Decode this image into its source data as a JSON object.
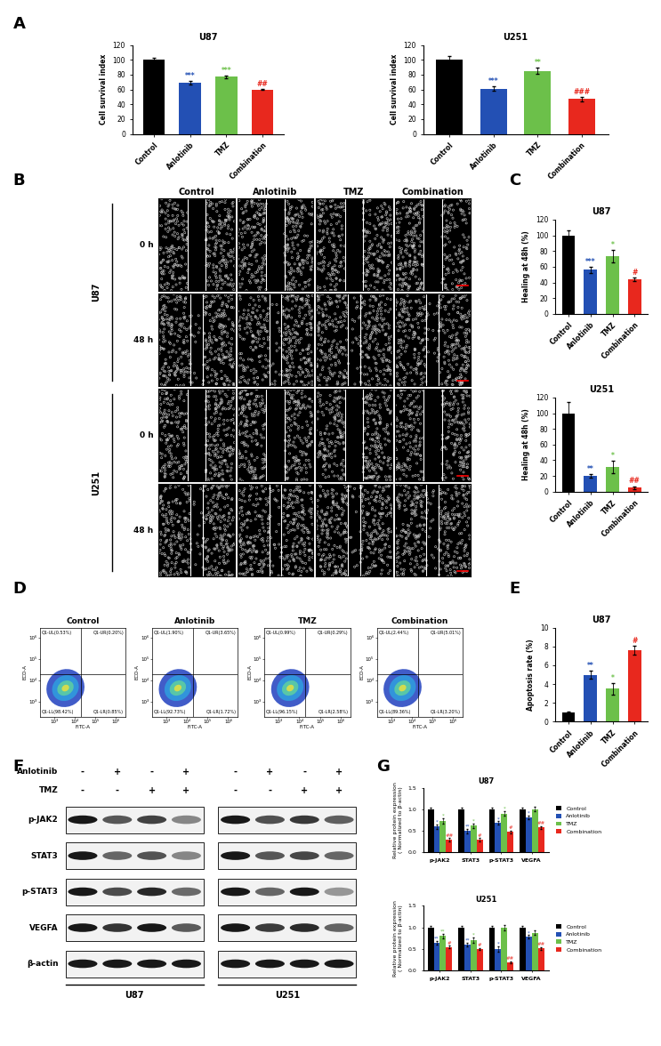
{
  "panel_labels": [
    "A",
    "B",
    "C",
    "D",
    "E",
    "F",
    "G"
  ],
  "chart_data": [
    {
      "type": "bar",
      "title": "U87",
      "ylabel": "Cell survival index",
      "categories": [
        "Control",
        "Anlotinib",
        "TMZ",
        "Combination"
      ],
      "values": [
        100,
        69,
        77,
        60
      ],
      "errors": [
        3,
        2,
        2,
        1
      ],
      "annotations": [
        null,
        "***",
        "***",
        "##"
      ],
      "colors": [
        "#000000",
        "#2350b4",
        "#6cc04a",
        "#e8281e"
      ],
      "ylim": [
        0,
        120
      ],
      "yticks": [
        0,
        20,
        40,
        60,
        80,
        100,
        120
      ]
    },
    {
      "type": "bar",
      "title": "U251",
      "ylabel": "Cell survival index",
      "categories": [
        "Control",
        "Anlotinib",
        "TMZ",
        "Combination"
      ],
      "values": [
        100,
        61,
        85,
        47
      ],
      "errors": [
        5,
        3,
        4,
        3
      ],
      "annotations": [
        null,
        "***",
        "**",
        "###"
      ],
      "colors": [
        "#000000",
        "#2350b4",
        "#6cc04a",
        "#e8281e"
      ],
      "ylim": [
        0,
        120
      ],
      "yticks": [
        0,
        20,
        40,
        60,
        80,
        100,
        120
      ]
    },
    {
      "type": "bar",
      "title": "U87",
      "ylabel": "Healing at 48h (%)",
      "categories": [
        "Control",
        "Anlotinib",
        "TMZ",
        "Combination"
      ],
      "values": [
        100,
        56,
        73,
        44
      ],
      "errors": [
        6,
        4,
        8,
        2
      ],
      "annotations": [
        null,
        "***",
        "*",
        "#"
      ],
      "colors": [
        "#000000",
        "#2350b4",
        "#6cc04a",
        "#e8281e"
      ],
      "ylim": [
        0,
        120
      ],
      "yticks": [
        0,
        20,
        40,
        60,
        80,
        100,
        120
      ]
    },
    {
      "type": "bar",
      "title": "U251",
      "ylabel": "Healing at 48h (%)",
      "categories": [
        "Control",
        "Anlotinib",
        "TMZ",
        "Combination"
      ],
      "values": [
        100,
        20,
        31,
        5
      ],
      "errors": [
        14,
        2,
        8,
        2
      ],
      "annotations": [
        null,
        "**",
        "*",
        "##"
      ],
      "colors": [
        "#000000",
        "#2350b4",
        "#6cc04a",
        "#e8281e"
      ],
      "ylim": [
        0,
        120
      ],
      "yticks": [
        0,
        20,
        40,
        60,
        80,
        100,
        120
      ]
    },
    {
      "type": "bar",
      "title": "U87",
      "ylabel": "Apoptosis rate (%)",
      "categories": [
        "Control",
        "Anlotinib",
        "TMZ",
        "Combination"
      ],
      "values": [
        1.0,
        5.0,
        3.5,
        7.6
      ],
      "errors": [
        0.1,
        0.4,
        0.6,
        0.5
      ],
      "annotations": [
        null,
        "**",
        "*",
        "#"
      ],
      "colors": [
        "#000000",
        "#2350b4",
        "#6cc04a",
        "#e8281e"
      ],
      "ylim": [
        0,
        10
      ],
      "yticks": [
        0,
        2,
        4,
        6,
        8,
        10
      ]
    },
    {
      "type": "bar",
      "title": "U87",
      "ylabel": "Relative protein expression\n( Normalized to β-actin)",
      "categories": [
        "p-JAK2",
        "STAT3",
        "p-STAT3",
        "VEGFA"
      ],
      "series": [
        {
          "name": "Control",
          "color": "#000000",
          "values": [
            1.0,
            1.0,
            1.0,
            1.0
          ],
          "errors": [
            0.04,
            0.04,
            0.04,
            0.04
          ],
          "annotations": [
            null,
            null,
            null,
            null
          ]
        },
        {
          "name": "Anlotinib",
          "color": "#2350b4",
          "values": [
            0.6,
            0.5,
            0.68,
            0.82
          ],
          "errors": [
            0.05,
            0.05,
            0.04,
            0.04
          ],
          "annotations": [
            "*",
            "**",
            "*",
            "*"
          ]
        },
        {
          "name": "TMZ",
          "color": "#6cc04a",
          "values": [
            0.73,
            0.62,
            0.9,
            1.0
          ],
          "errors": [
            0.06,
            0.05,
            0.05,
            0.05
          ],
          "annotations": [
            "*",
            "*",
            "*",
            null
          ]
        },
        {
          "name": "Combination",
          "color": "#e8281e",
          "values": [
            0.3,
            0.3,
            0.48,
            0.58
          ],
          "errors": [
            0.04,
            0.04,
            0.03,
            0.03
          ],
          "annotations": [
            "##",
            "#",
            "#",
            "##"
          ]
        }
      ],
      "ylim": [
        0,
        1.5
      ],
      "yticks": [
        {
          "value": 0,
          "label": "0.0"
        },
        {
          "value": 0.5,
          "label": "0.5"
        },
        {
          "value": 1.0,
          "label": "1.0"
        },
        {
          "value": 1.5,
          "label": "1.5"
        }
      ],
      "legend": "right"
    },
    {
      "type": "bar",
      "title": "U251",
      "ylabel": "Relative protein expression\n( Normalized to β-actin)",
      "categories": [
        "p-JAK2",
        "STAT3",
        "p-STAT3",
        "VEGFA"
      ],
      "series": [
        {
          "name": "Control",
          "color": "#000000",
          "values": [
            1.0,
            1.0,
            1.0,
            1.0
          ],
          "errors": [
            0.04,
            0.04,
            0.04,
            0.04
          ],
          "annotations": [
            null,
            null,
            null,
            null
          ]
        },
        {
          "name": "Anlotinib",
          "color": "#2350b4",
          "values": [
            0.65,
            0.6,
            0.5,
            0.78
          ],
          "errors": [
            0.04,
            0.04,
            0.06,
            0.04
          ],
          "annotations": [
            "**",
            "**",
            "*",
            "*"
          ]
        },
        {
          "name": "TMZ",
          "color": "#6cc04a",
          "values": [
            0.8,
            0.7,
            1.0,
            0.88
          ],
          "errors": [
            0.05,
            0.06,
            0.06,
            0.06
          ],
          "annotations": [
            "**",
            "*",
            null,
            null
          ]
        },
        {
          "name": "Combination",
          "color": "#e8281e",
          "values": [
            0.55,
            0.5,
            0.2,
            0.52
          ],
          "errors": [
            0.03,
            0.03,
            0.02,
            0.03
          ],
          "annotations": [
            "#",
            "#",
            "##",
            "##"
          ]
        }
      ],
      "ylim": [
        0,
        1.5
      ],
      "yticks": [
        {
          "value": 0,
          "label": "0.0"
        },
        {
          "value": 0.5,
          "label": "0.5"
        },
        {
          "value": 1.0,
          "label": "1.0"
        },
        {
          "value": 1.5,
          "label": "1.5"
        }
      ],
      "legend": "right"
    }
  ],
  "scratch_assay": {
    "columns": [
      "Control",
      "Anlotinib",
      "TMZ",
      "Combination"
    ],
    "cell_lines": [
      "U87",
      "U251"
    ],
    "time_points": [
      "0 h",
      "48 h"
    ]
  },
  "flow_cytometry": {
    "xlabel": "FITC-A",
    "ylabel": "ECD-A",
    "log": true,
    "xlim": [
      200,
      3000000
    ],
    "ylim": [
      200,
      3000000
    ],
    "xticks": [
      {
        "value": 1000,
        "label": "10³"
      },
      {
        "value": 10000,
        "label": "10⁴"
      },
      {
        "value": 100000,
        "label": "10⁵"
      },
      {
        "value": 1000000,
        "label": "10⁶"
      }
    ],
    "yticks": [
      {
        "value": 1000,
        "label": "10³"
      },
      {
        "value": 10000,
        "label": "10⁴"
      },
      {
        "value": 100000,
        "label": "10⁵"
      },
      {
        "value": 1000000,
        "label": "10⁶"
      }
    ],
    "gate_x": 20000,
    "gate_y": 20000,
    "plots": [
      {
        "title": "Control",
        "UL": "Q1-UL(0.53%)",
        "UR": "Q1-UR(0.20%)",
        "LL": "Q1-LL(98.42%)",
        "LR": "Q1-LR(0.85%)"
      },
      {
        "title": "Anlotinib",
        "UL": "Q1-UL(1.90%)",
        "UR": "Q1-UR(3.65%)",
        "LL": "Q1-LL(92.73%)",
        "LR": "Q1-LR(1.72%)"
      },
      {
        "title": "TMZ",
        "UL": "Q1-UL(0.99%)",
        "UR": "Q1-UR(0.29%)",
        "LL": "Q1-LL(96.15%)",
        "LR": "Q1-LR(2.58%)"
      },
      {
        "title": "Combination",
        "UL": "Q1-UL(2.44%)",
        "UR": "Q1-UR(5.01%)",
        "LL": "Q1-LL(89.36%)",
        "LR": "Q1-LR(3.20%)"
      }
    ]
  },
  "western_blot": {
    "treatments": [
      {
        "name": "Anlotinib",
        "signs": [
          "-",
          "+",
          "-",
          "+"
        ]
      },
      {
        "name": "TMZ",
        "signs": [
          "-",
          "-",
          "+",
          "+"
        ]
      }
    ],
    "proteins": [
      "p-JAK2",
      "STAT3",
      "p-STAT3",
      "VEGFA",
      "β-actin"
    ],
    "cell_lines": [
      "U87",
      "U251"
    ]
  }
}
